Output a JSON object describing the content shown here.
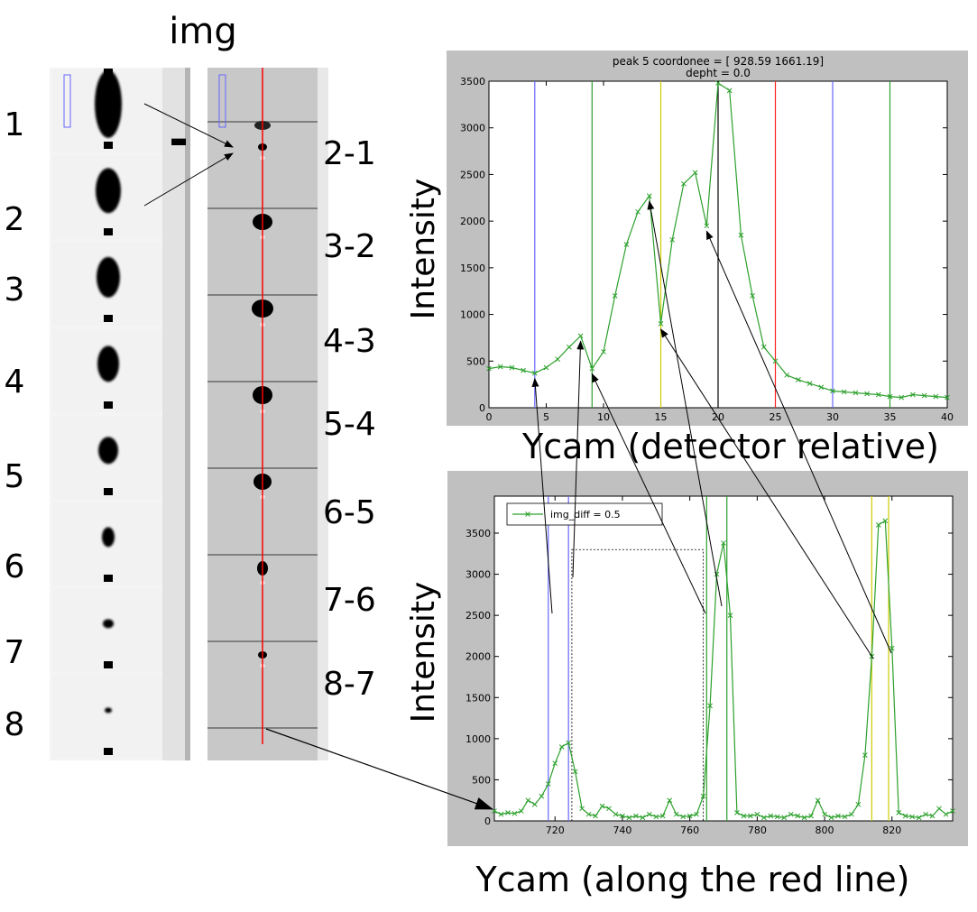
{
  "header": {
    "img_label": "img"
  },
  "left_panel": {
    "image_numbers": [
      "1",
      "2",
      "3",
      "4",
      "5",
      "6",
      "7",
      "8"
    ],
    "minus_sign": "-",
    "spot_sizes": [
      {
        "w": 30,
        "h": 75
      },
      {
        "w": 28,
        "h": 50
      },
      {
        "w": 26,
        "h": 45
      },
      {
        "w": 24,
        "h": 40
      },
      {
        "w": 22,
        "h": 30
      },
      {
        "w": 14,
        "h": 22
      },
      {
        "w": 12,
        "h": 10
      },
      {
        "w": 8,
        "h": 6
      }
    ]
  },
  "diff_panel": {
    "diff_labels": [
      "2-1",
      "3-2",
      "4-3",
      "5-4",
      "6-5",
      "7-6",
      "8-7"
    ],
    "diff_spot_sizes": [
      {
        "w": 10,
        "h": 8
      },
      {
        "w": 22,
        "h": 18
      },
      {
        "w": 24,
        "h": 20
      },
      {
        "w": 22,
        "h": 20
      },
      {
        "w": 20,
        "h": 18
      },
      {
        "w": 12,
        "h": 16
      },
      {
        "w": 10,
        "h": 8
      }
    ]
  },
  "colors": {
    "series": "#2ca02c",
    "blue_line": "#6666ff",
    "green_line": "#2ca02c",
    "yellow_line": "#cccc00",
    "red_line": "#ff2020",
    "frame_bg": "#c0c0c0",
    "spot": "#000000",
    "red_scan_line": "#ff0000"
  },
  "chart_data": [
    {
      "type": "line",
      "title": "peak 5 coordonee = [  928.59  1661.19]",
      "subtitle": "depht = 0.0",
      "xlabel": "Ycam (detector relative)",
      "ylabel": "Intensity",
      "xlim": [
        0,
        40
      ],
      "ylim": [
        0,
        3500
      ],
      "xticks": [
        0,
        5,
        10,
        15,
        20,
        25,
        30,
        35,
        40
      ],
      "yticks": [
        0,
        500,
        1000,
        1500,
        2000,
        2500,
        3000,
        3500
      ],
      "grid": false,
      "series": [
        {
          "x": [
            0,
            1,
            2,
            3,
            4,
            5,
            6,
            7,
            8,
            9,
            10,
            11,
            12,
            13,
            14,
            15,
            16,
            17,
            18,
            19,
            20,
            21,
            22,
            23,
            24,
            25,
            26,
            27,
            28,
            29,
            30,
            31,
            32,
            33,
            34,
            35,
            36,
            37,
            38,
            39,
            40
          ],
          "values": [
            420,
            440,
            430,
            400,
            370,
            430,
            520,
            650,
            770,
            420,
            600,
            1200,
            1750,
            2100,
            2270,
            900,
            1800,
            2400,
            2520,
            1950,
            3480,
            3400,
            1850,
            1200,
            650,
            500,
            350,
            300,
            260,
            220,
            180,
            170,
            160,
            150,
            140,
            120,
            110,
            140,
            130,
            120,
            110
          ]
        }
      ],
      "vlines": [
        {
          "x": 4,
          "color": "#6666ff"
        },
        {
          "x": 9,
          "color": "#2ca02c"
        },
        {
          "x": 15,
          "color": "#cccc00"
        },
        {
          "x": 20,
          "color": "#000000"
        },
        {
          "x": 25,
          "color": "#ff2020"
        },
        {
          "x": 30,
          "color": "#6666ff"
        },
        {
          "x": 35,
          "color": "#2ca02c"
        }
      ]
    },
    {
      "type": "line",
      "xlabel": "Ycam (along the red line)",
      "ylabel": "Intensity",
      "xlim": [
        702,
        838
      ],
      "ylim": [
        0,
        3950
      ],
      "xticks": [
        720,
        740,
        760,
        780,
        800,
        820
      ],
      "yticks": [
        0,
        500,
        1000,
        1500,
        2000,
        2500,
        3000,
        3500
      ],
      "legend": {
        "label": "img_diff = 0.5",
        "position": "top-left"
      },
      "grid": false,
      "series": [
        {
          "name": "img_diff = 0.5",
          "x": [
            702,
            704,
            706,
            708,
            710,
            712,
            714,
            716,
            718,
            720,
            722,
            724,
            726,
            728,
            730,
            732,
            734,
            736,
            738,
            740,
            742,
            744,
            746,
            748,
            750,
            752,
            754,
            756,
            758,
            760,
            762,
            764,
            766,
            768,
            770,
            772,
            774,
            776,
            778,
            780,
            782,
            784,
            786,
            788,
            790,
            792,
            794,
            796,
            798,
            800,
            802,
            804,
            806,
            808,
            810,
            812,
            814,
            816,
            818,
            820,
            822,
            824,
            826,
            828,
            830,
            832,
            834,
            836,
            838
          ],
          "values": [
            120,
            80,
            100,
            90,
            120,
            250,
            200,
            300,
            450,
            700,
            900,
            950,
            600,
            150,
            80,
            60,
            180,
            150,
            80,
            60,
            40,
            60,
            40,
            80,
            50,
            60,
            250,
            80,
            50,
            60,
            80,
            300,
            1400,
            3000,
            3380,
            2500,
            100,
            60,
            60,
            80,
            40,
            60,
            50,
            40,
            80,
            60,
            40,
            60,
            250,
            80,
            40,
            60,
            50,
            80,
            200,
            800,
            2000,
            3600,
            3650,
            2100,
            100,
            60,
            50,
            40,
            80,
            60,
            150,
            80,
            120
          ]
        }
      ],
      "vlines": [
        {
          "x": 718,
          "color": "#6666ff"
        },
        {
          "x": 724,
          "color": "#6666ff"
        },
        {
          "x": 765,
          "color": "#2ca02c"
        },
        {
          "x": 771,
          "color": "#2ca02c"
        },
        {
          "x": 814,
          "color": "#cccc00"
        },
        {
          "x": 819,
          "color": "#cccc00"
        }
      ],
      "dotted_box": {
        "x": [
          725,
          764
        ],
        "y": [
          0,
          3300
        ]
      }
    }
  ]
}
